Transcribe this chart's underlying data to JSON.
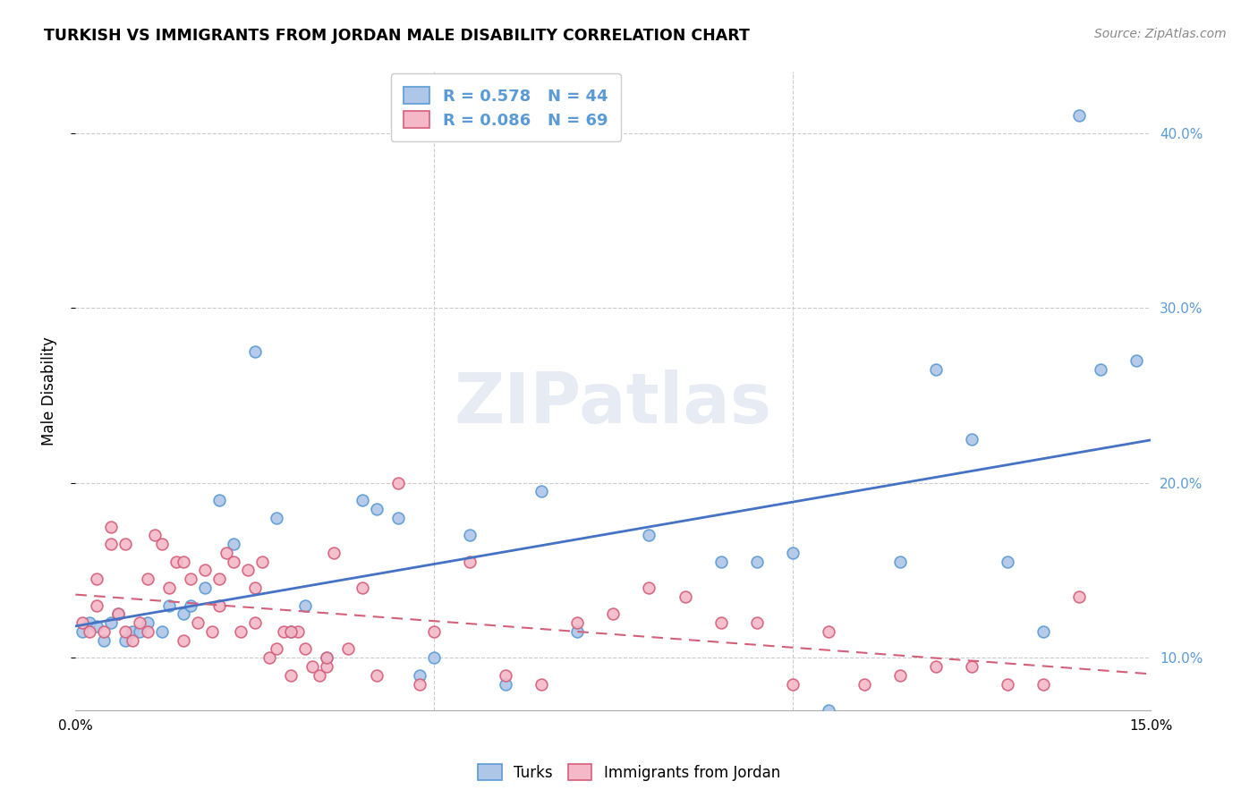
{
  "title": "TURKISH VS IMMIGRANTS FROM JORDAN MALE DISABILITY CORRELATION CHART",
  "source": "Source: ZipAtlas.com",
  "ylabel": "Male Disability",
  "xlim": [
    0.0,
    0.15
  ],
  "ylim": [
    0.07,
    0.435
  ],
  "yticks": [
    0.1,
    0.2,
    0.3,
    0.4
  ],
  "xticks": [
    0.0,
    0.05,
    0.1,
    0.15
  ],
  "background_color": "#ffffff",
  "grid_color": "#cccccc",
  "turks_color": "#aec6e8",
  "turks_edge_color": "#5b9bd5",
  "jordan_color": "#f4b8c8",
  "jordan_edge_color": "#d45f7a",
  "blue_line_color": "#4472c4",
  "pink_line_color": "#d45f7a",
  "legend_R_turks": "0.578",
  "legend_N_turks": "44",
  "legend_R_jordan": "0.086",
  "legend_N_jordan": "69",
  "watermark": "ZIPatlas",
  "turks_x": [
    0.001,
    0.002,
    0.003,
    0.004,
    0.005,
    0.006,
    0.007,
    0.008,
    0.009,
    0.01,
    0.012,
    0.013,
    0.015,
    0.016,
    0.018,
    0.02,
    0.022,
    0.025,
    0.028,
    0.03,
    0.032,
    0.035,
    0.04,
    0.042,
    0.045,
    0.048,
    0.05,
    0.055,
    0.06,
    0.065,
    0.07,
    0.08,
    0.09,
    0.095,
    0.1,
    0.105,
    0.115,
    0.12,
    0.125,
    0.13,
    0.135,
    0.14,
    0.143,
    0.148
  ],
  "turks_y": [
    0.115,
    0.12,
    0.118,
    0.11,
    0.12,
    0.125,
    0.11,
    0.115,
    0.115,
    0.12,
    0.115,
    0.13,
    0.125,
    0.13,
    0.14,
    0.19,
    0.165,
    0.275,
    0.18,
    0.115,
    0.13,
    0.1,
    0.19,
    0.185,
    0.18,
    0.09,
    0.1,
    0.17,
    0.085,
    0.195,
    0.115,
    0.17,
    0.155,
    0.155,
    0.16,
    0.07,
    0.155,
    0.265,
    0.225,
    0.155,
    0.115,
    0.41,
    0.265,
    0.27
  ],
  "jordan_x": [
    0.001,
    0.002,
    0.003,
    0.004,
    0.005,
    0.006,
    0.007,
    0.008,
    0.009,
    0.01,
    0.011,
    0.012,
    0.013,
    0.014,
    0.015,
    0.016,
    0.017,
    0.018,
    0.019,
    0.02,
    0.021,
    0.022,
    0.023,
    0.024,
    0.025,
    0.026,
    0.027,
    0.028,
    0.029,
    0.03,
    0.031,
    0.032,
    0.033,
    0.034,
    0.035,
    0.036,
    0.038,
    0.04,
    0.042,
    0.045,
    0.048,
    0.05,
    0.055,
    0.06,
    0.065,
    0.07,
    0.075,
    0.08,
    0.085,
    0.09,
    0.095,
    0.1,
    0.105,
    0.11,
    0.115,
    0.12,
    0.125,
    0.13,
    0.135,
    0.14,
    0.003,
    0.005,
    0.007,
    0.01,
    0.015,
    0.02,
    0.025,
    0.03,
    0.035
  ],
  "jordan_y": [
    0.12,
    0.115,
    0.13,
    0.115,
    0.175,
    0.125,
    0.115,
    0.11,
    0.12,
    0.115,
    0.17,
    0.165,
    0.14,
    0.155,
    0.155,
    0.145,
    0.12,
    0.15,
    0.115,
    0.145,
    0.16,
    0.155,
    0.115,
    0.15,
    0.14,
    0.155,
    0.1,
    0.105,
    0.115,
    0.09,
    0.115,
    0.105,
    0.095,
    0.09,
    0.095,
    0.16,
    0.105,
    0.14,
    0.09,
    0.2,
    0.085,
    0.115,
    0.155,
    0.09,
    0.085,
    0.12,
    0.125,
    0.14,
    0.135,
    0.12,
    0.12,
    0.085,
    0.115,
    0.085,
    0.09,
    0.095,
    0.095,
    0.085,
    0.085,
    0.135,
    0.145,
    0.165,
    0.165,
    0.145,
    0.11,
    0.13,
    0.12,
    0.115,
    0.1
  ]
}
